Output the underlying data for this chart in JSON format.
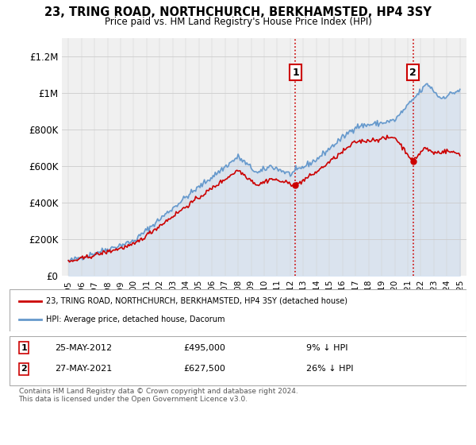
{
  "title": "23, TRING ROAD, NORTHCHURCH, BERKHAMSTED, HP4 3SY",
  "subtitle": "Price paid vs. HM Land Registry's House Price Index (HPI)",
  "property_color": "#cc0000",
  "hpi_color": "#6699cc",
  "hpi_fill_color": "#c5d8ee",
  "background_color": "#ffffff",
  "plot_bg_color": "#f0f0f0",
  "vline_color": "#cc0000",
  "legend_label_property": "23, TRING ROAD, NORTHCHURCH, BERKHAMSTED, HP4 3SY (detached house)",
  "legend_label_hpi": "HPI: Average price, detached house, Dacorum",
  "purchase1_date": "25-MAY-2012",
  "purchase1_price": 495000,
  "purchase1_pct": "9% ↓ HPI",
  "purchase2_date": "27-MAY-2021",
  "purchase2_price": 627500,
  "purchase2_pct": "26% ↓ HPI",
  "footer": "Contains HM Land Registry data © Crown copyright and database right 2024.\nThis data is licensed under the Open Government Licence v3.0.",
  "ylim": [
    0,
    1300000
  ],
  "yticks": [
    0,
    200000,
    400000,
    600000,
    800000,
    1000000,
    1200000
  ],
  "ytick_labels": [
    "£0",
    "£200K",
    "£400K",
    "£600K",
    "£800K",
    "£1M",
    "£1.2M"
  ],
  "purchase1_year": 2012.4,
  "purchase2_year": 2021.4
}
